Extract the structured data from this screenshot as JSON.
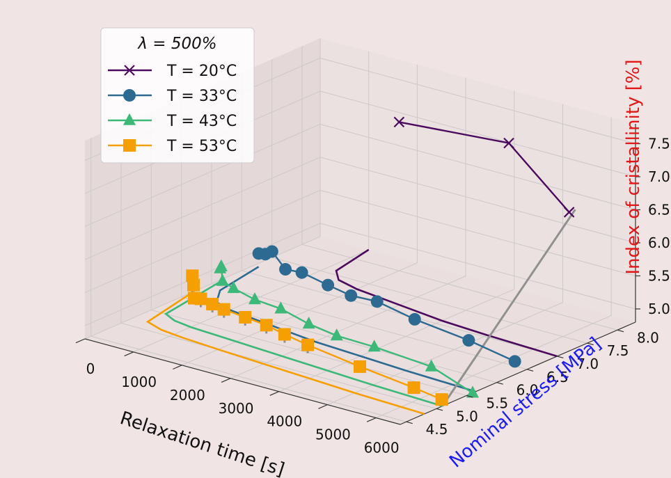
{
  "chart_data": {
    "type": "scatter",
    "projection": "3d",
    "legend": {
      "title": "λ = 500%",
      "placement": "top-left",
      "entries": [
        "T = 20°C",
        "T = 33°C",
        "T = 43°C",
        "T = 53°C"
      ]
    },
    "axes": {
      "x": {
        "label": "Relaxation time [s]",
        "ticks": [
          0,
          1000,
          2000,
          3000,
          4000,
          5000,
          6000
        ],
        "range": [
          0,
          6500
        ]
      },
      "y": {
        "label": "Nominal stress [MPa]",
        "ticks": [
          4.5,
          5.0,
          5.5,
          6.0,
          6.5,
          7.0,
          7.5,
          8.0
        ],
        "range": [
          4.4,
          8.3
        ],
        "color": "#1a1aff"
      },
      "z": {
        "label": "Index of cristallinity [%]",
        "ticks": [
          5.0,
          5.5,
          6.0,
          6.5,
          7.0,
          7.5
        ],
        "range": [
          4.8,
          7.8
        ],
        "color": "#e01818"
      },
      "grid": true
    },
    "series": [
      {
        "name": "T = 20°C",
        "color": "#4b0a5e",
        "marker": "x",
        "points": [
          [
            2000,
            8.0,
            7.05
          ],
          [
            4200,
            8.05,
            7.15
          ],
          [
            6500,
            7.2,
            6.9
          ]
        ],
        "curve": [
          [
            1000,
            8.3
          ],
          [
            1200,
            7.6
          ],
          [
            1500,
            7.4
          ],
          [
            2000,
            7.3
          ],
          [
            3000,
            7.2
          ],
          [
            4000,
            7.1
          ],
          [
            5000,
            7.05
          ],
          [
            6500,
            7.0
          ]
        ]
      },
      {
        "name": "T = 33°C",
        "color": "#2c6a92",
        "marker": "o",
        "points": [
          [
            100,
            7.2,
            5.0
          ],
          [
            300,
            7.15,
            5.05
          ],
          [
            500,
            7.1,
            5.15
          ],
          [
            900,
            7.0,
            5.0
          ],
          [
            1300,
            6.95,
            5.05
          ],
          [
            1900,
            6.9,
            5.0
          ],
          [
            2500,
            6.8,
            5.0
          ],
          [
            3100,
            6.75,
            5.05
          ],
          [
            4000,
            6.65,
            5.0
          ],
          [
            5300,
            6.5,
            5.0
          ],
          [
            6500,
            6.3,
            5.0
          ]
        ],
        "curve": [
          [
            100,
            7.2
          ],
          [
            300,
            6.4
          ],
          [
            600,
            6.1
          ],
          [
            1000,
            6.0
          ],
          [
            2000,
            5.9
          ],
          [
            3000,
            5.8
          ],
          [
            4000,
            5.75
          ],
          [
            5000,
            5.7
          ],
          [
            6500,
            5.65
          ]
        ]
      },
      {
        "name": "T = 43°C",
        "color": "#3cb878",
        "marker": "^",
        "points": [
          [
            50,
            6.6,
            5.0
          ],
          [
            200,
            6.5,
            5.1
          ],
          [
            350,
            6.4,
            4.95
          ],
          [
            700,
            6.3,
            4.95
          ],
          [
            1200,
            6.25,
            4.9
          ],
          [
            1800,
            6.2,
            4.9
          ],
          [
            2500,
            6.1,
            4.85
          ],
          [
            3200,
            6.0,
            4.85
          ],
          [
            4100,
            5.9,
            4.9
          ],
          [
            5400,
            5.8,
            4.9
          ],
          [
            6500,
            5.6,
            4.8
          ]
        ],
        "curve": [
          [
            50,
            6.6
          ],
          [
            300,
            5.5
          ],
          [
            600,
            5.4
          ],
          [
            1000,
            5.35
          ],
          [
            2000,
            5.3
          ],
          [
            3000,
            5.25
          ],
          [
            4000,
            5.2
          ],
          [
            5000,
            5.15
          ],
          [
            6500,
            5.1
          ]
        ]
      },
      {
        "name": "T = 53°C",
        "color": "#f5a000",
        "marker": "s",
        "points": [
          [
            0,
            6.2,
            4.9
          ],
          [
            100,
            6.1,
            5.1
          ],
          [
            200,
            6.05,
            4.8
          ],
          [
            400,
            6.0,
            4.85
          ],
          [
            700,
            5.95,
            4.85
          ],
          [
            1000,
            5.9,
            4.85
          ],
          [
            1500,
            5.85,
            4.85
          ],
          [
            2000,
            5.8,
            4.85
          ],
          [
            2500,
            5.7,
            4.85
          ],
          [
            3100,
            5.6,
            4.85
          ],
          [
            4300,
            5.5,
            4.8
          ],
          [
            5600,
            5.35,
            4.8
          ],
          [
            6300,
            5.25,
            4.8
          ]
        ],
        "curve": [
          [
            0,
            6.2
          ],
          [
            300,
            5.2
          ],
          [
            700,
            5.1
          ],
          [
            1200,
            5.05
          ],
          [
            2000,
            5.0
          ],
          [
            3000,
            4.95
          ],
          [
            4000,
            4.9
          ],
          [
            5000,
            4.85
          ],
          [
            6500,
            4.8
          ]
        ]
      }
    ],
    "connector": {
      "color": "#909090",
      "from": [
        6500,
        5.1,
        4.8
      ],
      "to": [
        6500,
        7.3,
        6.9
      ]
    }
  }
}
